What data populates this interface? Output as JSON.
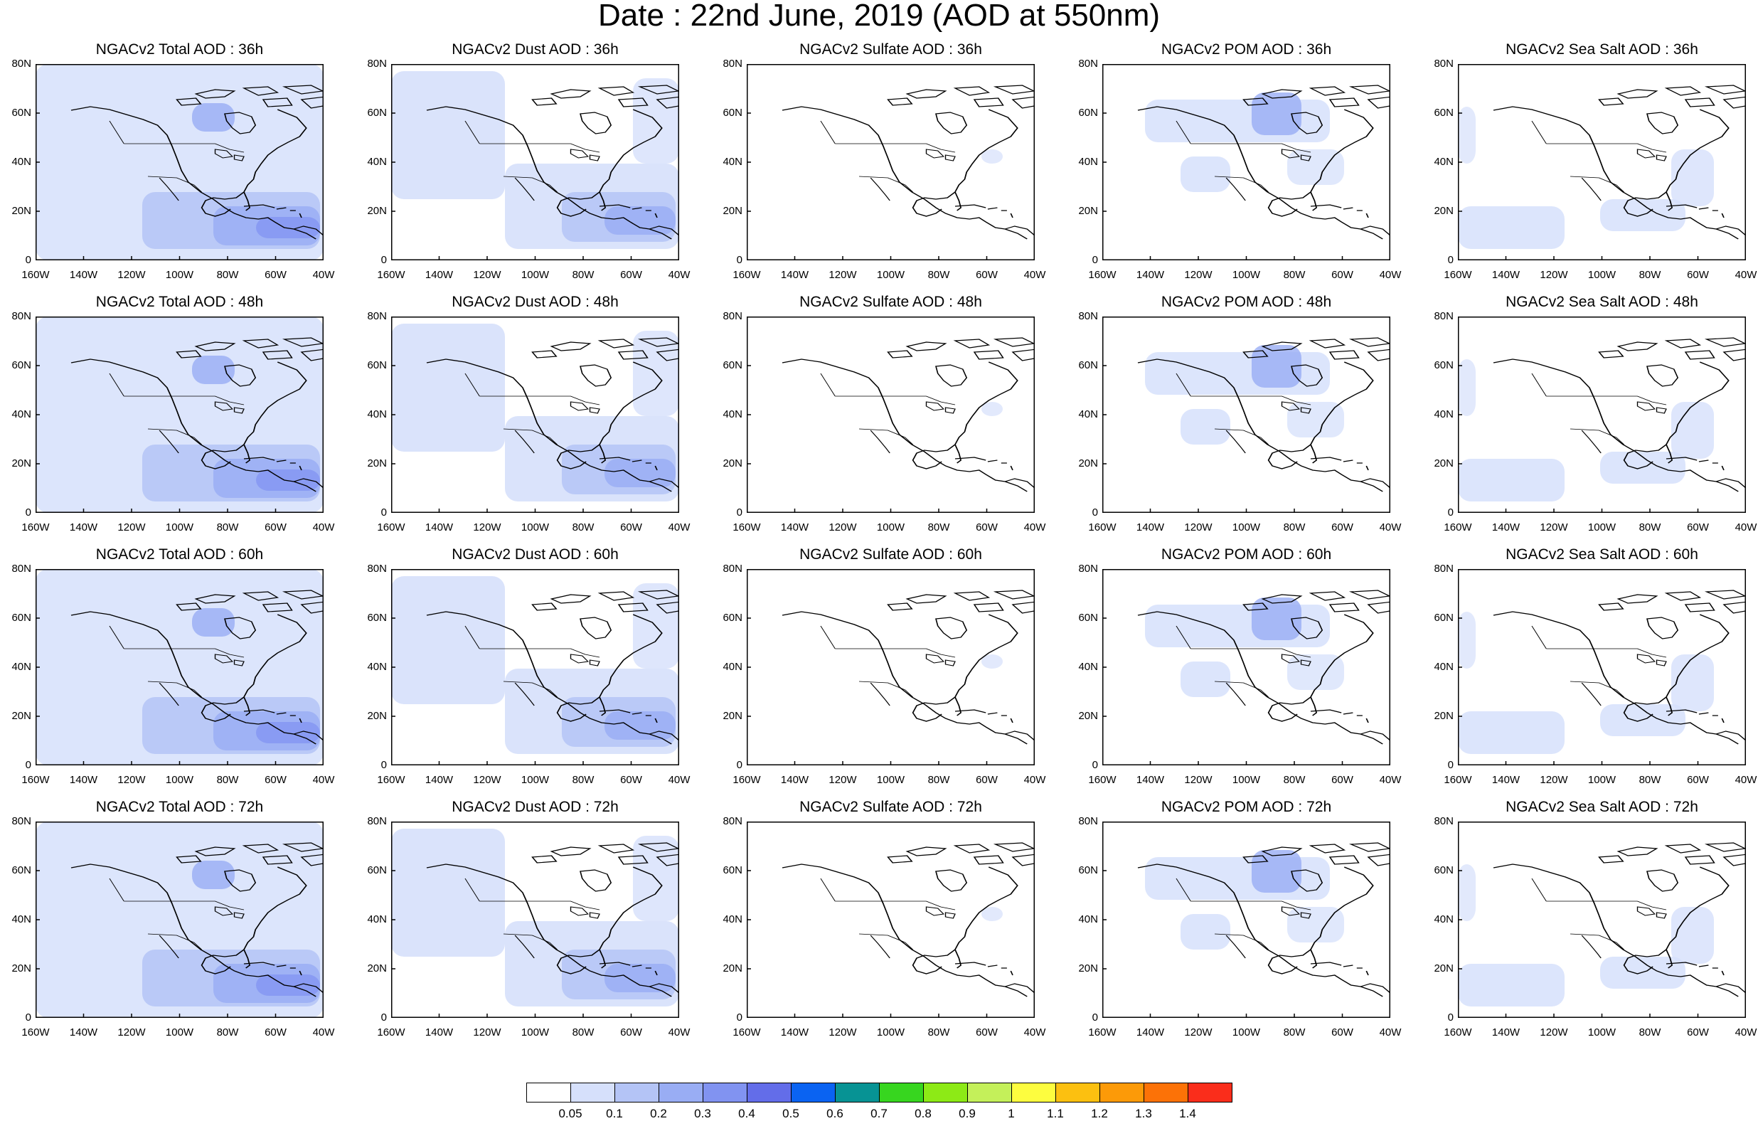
{
  "title": "Date : 22nd June, 2019 (AOD at 550nm)",
  "y_ticks": [
    "80N",
    "60N",
    "40N",
    "20N",
    "0"
  ],
  "x_ticks": [
    "160W",
    "140W",
    "120W",
    "100W",
    "80W",
    "60W",
    "40W"
  ],
  "panels": [
    [
      {
        "title": "NGACv2 Total AOD : 36h",
        "species": "total",
        "hour": 36
      },
      {
        "title": "NGACv2 Dust AOD : 36h",
        "species": "dust",
        "hour": 36
      },
      {
        "title": "NGACv2 Sulfate AOD : 36h",
        "species": "sulfate",
        "hour": 36
      },
      {
        "title": "NGACv2 POM AOD : 36h",
        "species": "pom",
        "hour": 36
      },
      {
        "title": "NGACv2 Sea Salt AOD : 36h",
        "species": "seasalt",
        "hour": 36
      }
    ],
    [
      {
        "title": "NGACv2 Total AOD : 48h",
        "species": "total",
        "hour": 48
      },
      {
        "title": "NGACv2 Dust AOD : 48h",
        "species": "dust",
        "hour": 48
      },
      {
        "title": "NGACv2 Sulfate AOD : 48h",
        "species": "sulfate",
        "hour": 48
      },
      {
        "title": "NGACv2 POM AOD : 48h",
        "species": "pom",
        "hour": 48
      },
      {
        "title": "NGACv2 Sea Salt AOD : 48h",
        "species": "seasalt",
        "hour": 48
      }
    ],
    [
      {
        "title": "NGACv2 Total AOD : 60h",
        "species": "total",
        "hour": 60
      },
      {
        "title": "NGACv2 Dust AOD : 60h",
        "species": "dust",
        "hour": 60
      },
      {
        "title": "NGACv2 Sulfate AOD : 60h",
        "species": "sulfate",
        "hour": 60
      },
      {
        "title": "NGACv2 POM AOD : 60h",
        "species": "pom",
        "hour": 60
      },
      {
        "title": "NGACv2 Sea Salt AOD : 60h",
        "species": "seasalt",
        "hour": 60
      }
    ],
    [
      {
        "title": "NGACv2 Total AOD : 72h",
        "species": "total",
        "hour": 72
      },
      {
        "title": "NGACv2 Dust AOD : 72h",
        "species": "dust",
        "hour": 72
      },
      {
        "title": "NGACv2 Sulfate AOD : 72h",
        "species": "sulfate",
        "hour": 72
      },
      {
        "title": "NGACv2 POM AOD : 72h",
        "species": "pom",
        "hour": 72
      },
      {
        "title": "NGACv2 Sea Salt  AOD : 72h",
        "species": "seasalt",
        "hour": 72
      }
    ]
  ],
  "colorbar": {
    "labels": [
      "0.05",
      "0.1",
      "0.2",
      "0.3",
      "0.4",
      "0.5",
      "0.6",
      "0.7",
      "0.8",
      "0.9",
      "1",
      "1.1",
      "1.2",
      "1.3",
      "1.4"
    ],
    "colors": [
      "#ffffff",
      "#d6e0fb",
      "#b4c4f6",
      "#99adf4",
      "#8193f1",
      "#636de9",
      "#0a63f2",
      "#079394",
      "#37d61f",
      "#8dea16",
      "#c4f05a",
      "#fdfd3f",
      "#fcc010",
      "#fc9a08",
      "#fc7207",
      "#fa2d1b"
    ]
  }
}
